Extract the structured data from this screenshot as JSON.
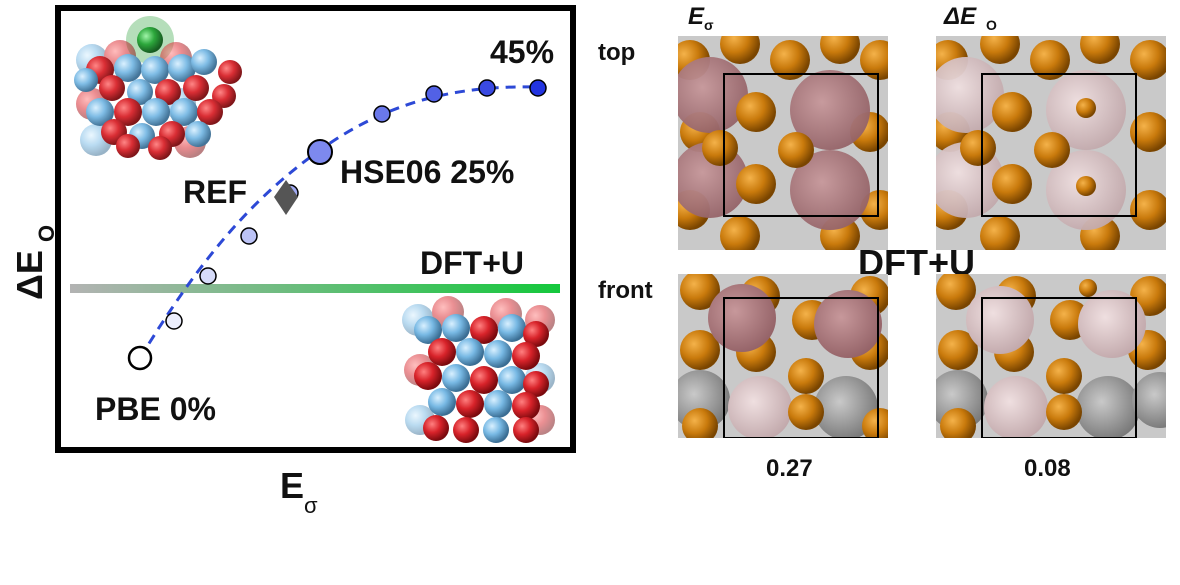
{
  "left_panel": {
    "x_axis_label": "E",
    "x_axis_sub": "σ",
    "y_axis_label": "ΔE",
    "y_axis_sub": "O",
    "labels": {
      "pbe": "PBE 0%",
      "hse": "HSE06 25%",
      "max": "45%",
      "ref": "REF",
      "dftu": "DFT+U"
    },
    "colors": {
      "curve": "#2d49d6",
      "dftu_start": "#b3b3b3",
      "dftu_end": "#14c83c",
      "oxygen": "#cf1d22",
      "metal": "#6fb3e0",
      "dopant": "#1f9b2e"
    }
  },
  "right_panel": {
    "col_headers": {
      "e_sigma": "E",
      "e_sigma_sub": "σ",
      "delta_e": "ΔE",
      "delta_e_sub": "O"
    },
    "row_labels": {
      "top": "top",
      "front": "front"
    },
    "center_label": "DFT+U",
    "values": {
      "e_sigma": "0.27",
      "delta_e": "0.08"
    },
    "colors": {
      "orange": "#c97a0c",
      "mauve_dark": "#a9777b",
      "mauve_light": "#dcc6c8",
      "gray": "#9a9a9a"
    }
  }
}
